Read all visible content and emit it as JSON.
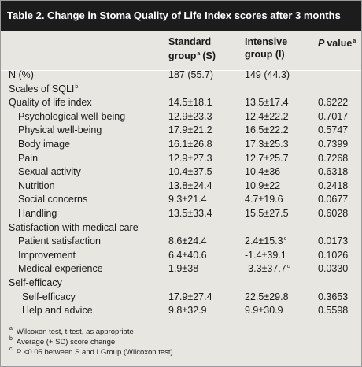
{
  "title": "Table 2. Change in Stoma Quality of Life Index scores after 3 months",
  "table": {
    "header": [
      {
        "line1": "Standard",
        "line2": "group",
        "sup": "a",
        "suffix": "(S)"
      },
      {
        "line1": "Intensive",
        "line2": "group (I)"
      },
      {
        "italic": "P",
        "text": "value",
        "sup": "a"
      }
    ],
    "rows": [
      {
        "label": "N (%)",
        "indent": 0,
        "cells": [
          "187 (55.7)",
          "149 (44.3)"
        ]
      },
      {
        "label": {
          "text": "Scales of SQLI",
          "sup": "b"
        },
        "indent": 0,
        "cells": []
      },
      {
        "label": "Quality of life index",
        "indent": 0,
        "cells": [
          "14.5±18.1",
          "13.5±17.4",
          "0.6222"
        ]
      },
      {
        "label": "Psychological well-being",
        "indent": 1,
        "cells": [
          "12.9±23.3",
          "12.4±22.2",
          "0.7017"
        ]
      },
      {
        "label": "Physical well-being",
        "indent": 1,
        "cells": [
          "17.9±21.2",
          "16.5±22.2",
          "0.5747"
        ]
      },
      {
        "label": "Body image",
        "indent": 1,
        "cells": [
          "16.1±26.8",
          "17.3±25.3",
          "0.7399"
        ]
      },
      {
        "label": "Pain",
        "indent": 1,
        "cells": [
          "12.9±27.3",
          "12.7±25.7",
          "0.7268"
        ]
      },
      {
        "label": "Sexual activity",
        "indent": 1,
        "cells": [
          "10.4±37.5",
          "10.4±36",
          "0.6318"
        ]
      },
      {
        "label": "Nutrition",
        "indent": 1,
        "cells": [
          "13.8±24.4",
          "10.9±22",
          "0.2418"
        ]
      },
      {
        "label": "Social concerns",
        "indent": 1,
        "cells": [
          "9.3±21.4",
          "4.7±19.6",
          "0.0677"
        ]
      },
      {
        "label": "Handling",
        "indent": 1,
        "cells": [
          "13.5±33.4",
          "15.5±27.5",
          "0.6028"
        ]
      },
      {
        "label": "Satisfaction with medical care",
        "indent": 0,
        "cells": []
      },
      {
        "label": "Patient satisfaction",
        "indent": 1,
        "cells": [
          "8.6±24.4",
          {
            "text": "2.4±15.3",
            "sup": "c"
          },
          "0.0173"
        ]
      },
      {
        "label": "Improvement",
        "indent": 1,
        "cells": [
          "6.4±40.6",
          "-1.4±39.1",
          "0.1026"
        ]
      },
      {
        "label": "Medical experience",
        "indent": 1,
        "cells": [
          "1.9±38",
          {
            "text": "-3.3±37.7",
            "sup": "c"
          },
          "0.0330"
        ]
      },
      {
        "label": "Self-efficacy",
        "indent": 0,
        "cells": []
      },
      {
        "label": "Self-efficacy",
        "indent": 2,
        "cells": [
          "17.9±27.4",
          "22.5±29.8",
          "0.3653"
        ]
      },
      {
        "label": "Help and advice",
        "indent": 2,
        "cells": [
          "9.8±32.9",
          "9.9±30.9",
          "0.5598"
        ]
      }
    ]
  },
  "footnotes": [
    {
      "mark": "a",
      "text": "Wilcoxon test, t-test, as appropriate"
    },
    {
      "mark": "b",
      "text": "Average (+ SD) score change"
    },
    {
      "mark": "c",
      "italic": "P",
      "text": "<0.05 between S and I Group (Wilcoxon test)"
    }
  ]
}
